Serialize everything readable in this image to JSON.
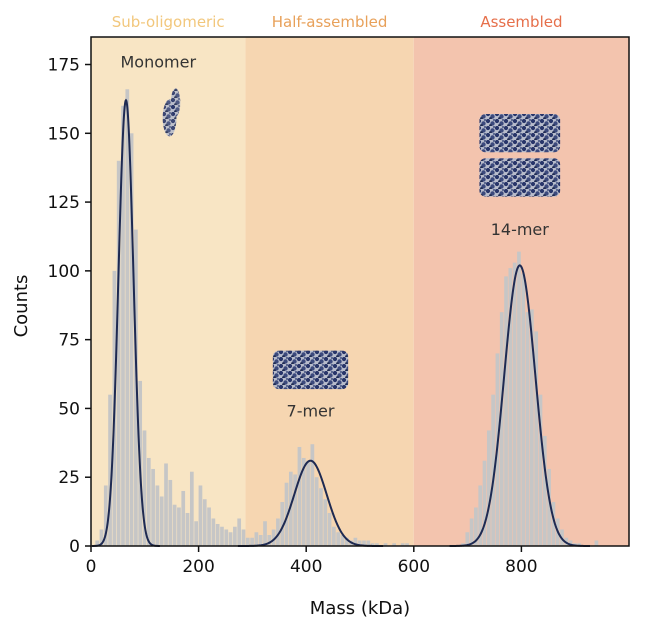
{
  "chart_data": {
    "type": "bar",
    "xlabel": "Mass (kDa)",
    "ylabel": "Counts",
    "xlim": [
      0,
      1000
    ],
    "ylim": [
      0,
      185
    ],
    "xticks": [
      0,
      200,
      400,
      600,
      800
    ],
    "yticks": [
      0,
      25,
      50,
      75,
      100,
      125,
      150,
      175
    ],
    "grid": false,
    "regions": [
      {
        "label": "Sub-oligomeric",
        "start": 0,
        "end": 287,
        "color": "#f8e5c4",
        "label_color": "#f2c77c"
      },
      {
        "label": "Half-assembled",
        "start": 287,
        "end": 600,
        "color": "#f6d6b1",
        "label_color": "#e8a15a"
      },
      {
        "label": "Assembled",
        "start": 600,
        "end": 1000,
        "color": "#f3c4ae",
        "label_color": "#e66f4a"
      }
    ],
    "peaks": [
      {
        "label": "Monomer",
        "center": 65,
        "height": 162,
        "sigma": 14,
        "label_x": 125,
        "label_y": 174
      },
      {
        "label": "7-mer",
        "center": 408,
        "height": 31,
        "sigma": 30,
        "label_x": 408,
        "label_y": 47
      },
      {
        "label": "14-mer",
        "center": 797,
        "height": 102,
        "sigma": 29,
        "label_x": 797,
        "label_y": 113
      }
    ],
    "bin_width": 8,
    "histogram": {
      "x": [
        4,
        12,
        20,
        28,
        36,
        44,
        52,
        60,
        68,
        76,
        84,
        92,
        100,
        108,
        116,
        124,
        132,
        140,
        148,
        156,
        164,
        172,
        180,
        188,
        196,
        204,
        212,
        220,
        228,
        236,
        244,
        252,
        260,
        268,
        276,
        284,
        292,
        300,
        308,
        316,
        324,
        332,
        340,
        348,
        356,
        364,
        372,
        380,
        388,
        396,
        404,
        412,
        420,
        428,
        436,
        444,
        452,
        460,
        468,
        476,
        484,
        492,
        500,
        508,
        516,
        524,
        532,
        540,
        548,
        556,
        564,
        572,
        580,
        588,
        596,
        604,
        612,
        620,
        628,
        636,
        644,
        652,
        660,
        668,
        676,
        684,
        692,
        700,
        708,
        716,
        724,
        732,
        740,
        748,
        756,
        764,
        772,
        780,
        788,
        796,
        804,
        812,
        820,
        828,
        836,
        844,
        852,
        860,
        868,
        876,
        884,
        892,
        900,
        908,
        916,
        924,
        932,
        940,
        948
      ],
      "values": [
        0,
        2,
        6,
        22,
        55,
        100,
        140,
        160,
        166,
        150,
        115,
        60,
        42,
        32,
        28,
        22,
        18,
        30,
        24,
        15,
        14,
        20,
        12,
        27,
        9,
        22,
        17,
        14,
        10,
        8,
        7,
        6,
        5,
        7,
        10,
        6,
        3,
        3,
        5,
        4,
        9,
        4,
        6,
        10,
        16,
        23,
        27,
        26,
        36,
        32,
        31,
        37,
        25,
        21,
        17,
        12,
        7,
        5,
        4,
        3,
        2,
        3,
        2,
        2,
        2,
        1,
        1,
        0,
        1,
        0,
        1,
        0,
        1,
        1,
        0,
        0,
        0,
        0,
        0,
        0,
        0,
        0,
        0,
        0,
        0,
        0,
        1,
        5,
        10,
        14,
        22,
        31,
        42,
        55,
        70,
        85,
        98,
        101,
        103,
        107,
        99,
        85,
        86,
        78,
        55,
        40,
        28,
        16,
        10,
        6,
        3,
        2,
        1,
        1,
        0,
        0,
        0,
        2,
        0
      ]
    },
    "bar_color": "#c6c6c6",
    "curve_color": "#1e2a52",
    "structures": [
      {
        "name": "monomer-structure",
        "x_center": 150,
        "y_center": 158,
        "width_units": 40,
        "height_units": 16
      },
      {
        "name": "7-mer-structure",
        "x_center": 408,
        "y_center": 64,
        "width_units": 140,
        "height_units": 14
      },
      {
        "name": "14-mer-structure",
        "x_center": 797,
        "y_center": 142,
        "width_units": 150,
        "height_units": 30
      }
    ]
  }
}
